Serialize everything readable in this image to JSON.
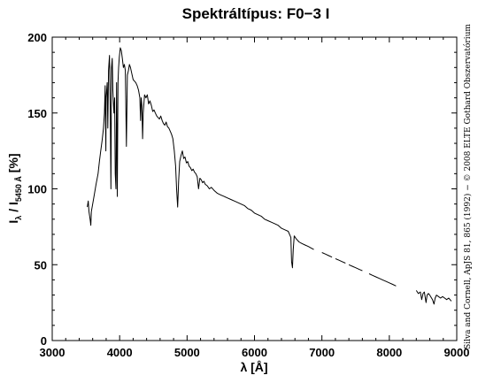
{
  "chart_data": {
    "type": "line",
    "title": "Spektráltípus: F0−3 I",
    "xlabel": "λ [Å]",
    "ylabel_main": "I",
    "ylabel_sub1": "λ",
    "ylabel_mid": " / I",
    "ylabel_sub2": "5450 Å",
    "ylabel_end": " [%]",
    "xlim": [
      3000,
      9000
    ],
    "ylim": [
      0,
      200
    ],
    "xticks": [
      3000,
      4000,
      5000,
      6000,
      7000,
      8000,
      9000
    ],
    "yticks": [
      0,
      50,
      100,
      150,
      200
    ],
    "grid": false,
    "line_color": "#000000",
    "credit": "Silva and Cornell, ApJS 81, 865 (1992) − © 2008 ELTE Gothard Obszervatórium",
    "segments": [
      [
        [
          3520,
          88
        ],
        [
          3535,
          92
        ],
        [
          3545,
          85
        ],
        [
          3555,
          82
        ],
        [
          3565,
          79
        ],
        [
          3572,
          76
        ],
        [
          3580,
          85
        ],
        [
          3600,
          90
        ],
        [
          3620,
          95
        ],
        [
          3650,
          103
        ],
        [
          3680,
          110
        ],
        [
          3700,
          118
        ],
        [
          3720,
          125
        ],
        [
          3740,
          132
        ],
        [
          3760,
          140
        ],
        [
          3775,
          150
        ],
        [
          3785,
          168
        ],
        [
          3795,
          125
        ],
        [
          3800,
          160
        ],
        [
          3815,
          170
        ],
        [
          3825,
          140
        ],
        [
          3835,
          178
        ],
        [
          3850,
          188
        ],
        [
          3860,
          155
        ],
        [
          3870,
          100
        ],
        [
          3880,
          180
        ],
        [
          3890,
          186
        ],
        [
          3900,
          165
        ],
        [
          3915,
          150
        ],
        [
          3925,
          160
        ],
        [
          3935,
          110
        ],
        [
          3945,
          100
        ],
        [
          3955,
          170
        ],
        [
          3965,
          95
        ],
        [
          3975,
          170
        ],
        [
          3985,
          180
        ],
        [
          3995,
          187
        ],
        [
          4010,
          193
        ],
        [
          4025,
          191
        ],
        [
          4040,
          186
        ],
        [
          4055,
          180
        ],
        [
          4070,
          182
        ],
        [
          4085,
          178
        ],
        [
          4100,
          128
        ],
        [
          4115,
          175
        ],
        [
          4130,
          178
        ],
        [
          4145,
          182
        ],
        [
          4160,
          180
        ],
        [
          4180,
          176
        ],
        [
          4200,
          172
        ],
        [
          4220,
          171
        ],
        [
          4240,
          170
        ],
        [
          4260,
          168
        ],
        [
          4280,
          165
        ],
        [
          4300,
          160
        ],
        [
          4310,
          145
        ],
        [
          4320,
          160
        ],
        [
          4330,
          155
        ],
        [
          4340,
          133
        ],
        [
          4350,
          150
        ],
        [
          4370,
          162
        ],
        [
          4390,
          160
        ],
        [
          4410,
          162
        ],
        [
          4430,
          156
        ],
        [
          4450,
          158
        ],
        [
          4470,
          155
        ],
        [
          4490,
          151
        ],
        [
          4510,
          152
        ],
        [
          4530,
          150
        ],
        [
          4550,
          148
        ],
        [
          4570,
          147
        ],
        [
          4590,
          146
        ],
        [
          4610,
          148
        ],
        [
          4630,
          145
        ],
        [
          4650,
          143
        ],
        [
          4670,
          142
        ],
        [
          4690,
          144
        ],
        [
          4710,
          141
        ],
        [
          4730,
          140
        ],
        [
          4750,
          138
        ],
        [
          4770,
          136
        ],
        [
          4790,
          133
        ],
        [
          4810,
          125
        ],
        [
          4830,
          115
        ],
        [
          4845,
          100
        ],
        [
          4861,
          88
        ],
        [
          4875,
          105
        ],
        [
          4890,
          118
        ],
        [
          4910,
          122
        ],
        [
          4930,
          125
        ],
        [
          4950,
          120
        ],
        [
          4970,
          121
        ],
        [
          4990,
          117
        ],
        [
          5010,
          118
        ],
        [
          5030,
          115
        ],
        [
          5050,
          114
        ],
        [
          5070,
          112
        ],
        [
          5090,
          113
        ],
        [
          5110,
          111
        ],
        [
          5130,
          110
        ],
        [
          5150,
          108
        ],
        [
          5170,
          100
        ],
        [
          5190,
          107
        ],
        [
          5210,
          106
        ],
        [
          5230,
          104
        ],
        [
          5250,
          105
        ],
        [
          5270,
          103
        ],
        [
          5300,
          102
        ],
        [
          5330,
          100
        ],
        [
          5360,
          101
        ],
        [
          5400,
          99
        ],
        [
          5450,
          97
        ],
        [
          5500,
          96
        ],
        [
          5550,
          95
        ],
        [
          5600,
          94
        ],
        [
          5650,
          93
        ],
        [
          5700,
          92
        ],
        [
          5750,
          91
        ],
        [
          5800,
          90
        ],
        [
          5850,
          89
        ],
        [
          5900,
          87
        ],
        [
          5950,
          86
        ],
        [
          6000,
          84
        ],
        [
          6050,
          83
        ],
        [
          6100,
          82
        ],
        [
          6150,
          80
        ],
        [
          6200,
          79
        ],
        [
          6250,
          78
        ],
        [
          6300,
          77
        ],
        [
          6350,
          76
        ],
        [
          6400,
          74
        ],
        [
          6450,
          73
        ],
        [
          6500,
          72
        ],
        [
          6540,
          68
        ],
        [
          6550,
          52
        ],
        [
          6563,
          48
        ],
        [
          6575,
          60
        ],
        [
          6590,
          69
        ],
        [
          6620,
          67
        ],
        [
          6660,
          65
        ],
        [
          6700,
          64
        ],
        [
          6750,
          63
        ],
        [
          6800,
          62
        ],
        [
          6840,
          61
        ],
        [
          6880,
          60
        ]
      ],
      [
        [
          7000,
          58
        ],
        [
          7050,
          57
        ],
        [
          7100,
          56
        ],
        [
          7150,
          55
        ]
      ],
      [
        [
          7200,
          54
        ],
        [
          7250,
          53
        ],
        [
          7300,
          52
        ],
        [
          7350,
          51
        ]
      ],
      [
        [
          7400,
          50
        ],
        [
          7450,
          49
        ],
        [
          7500,
          48
        ],
        [
          7550,
          47
        ],
        [
          7600,
          46
        ]
      ],
      [
        [
          7700,
          44
        ],
        [
          7750,
          43
        ],
        [
          7800,
          42
        ],
        [
          7850,
          41
        ],
        [
          7900,
          40
        ],
        [
          7950,
          39
        ],
        [
          8000,
          38
        ],
        [
          8050,
          37
        ],
        [
          8100,
          36
        ]
      ],
      [
        [
          8400,
          33
        ],
        [
          8430,
          31
        ],
        [
          8460,
          32
        ],
        [
          8480,
          27
        ],
        [
          8500,
          31
        ],
        [
          8520,
          32
        ],
        [
          8545,
          25
        ],
        [
          8560,
          30
        ],
        [
          8580,
          31
        ],
        [
          8600,
          30
        ],
        [
          8640,
          27
        ],
        [
          8662,
          24
        ],
        [
          8680,
          28
        ],
        [
          8700,
          30
        ],
        [
          8730,
          29
        ],
        [
          8760,
          28
        ],
        [
          8790,
          29
        ],
        [
          8820,
          28
        ],
        [
          8850,
          27
        ],
        [
          8880,
          28
        ],
        [
          8920,
          26
        ]
      ]
    ]
  }
}
